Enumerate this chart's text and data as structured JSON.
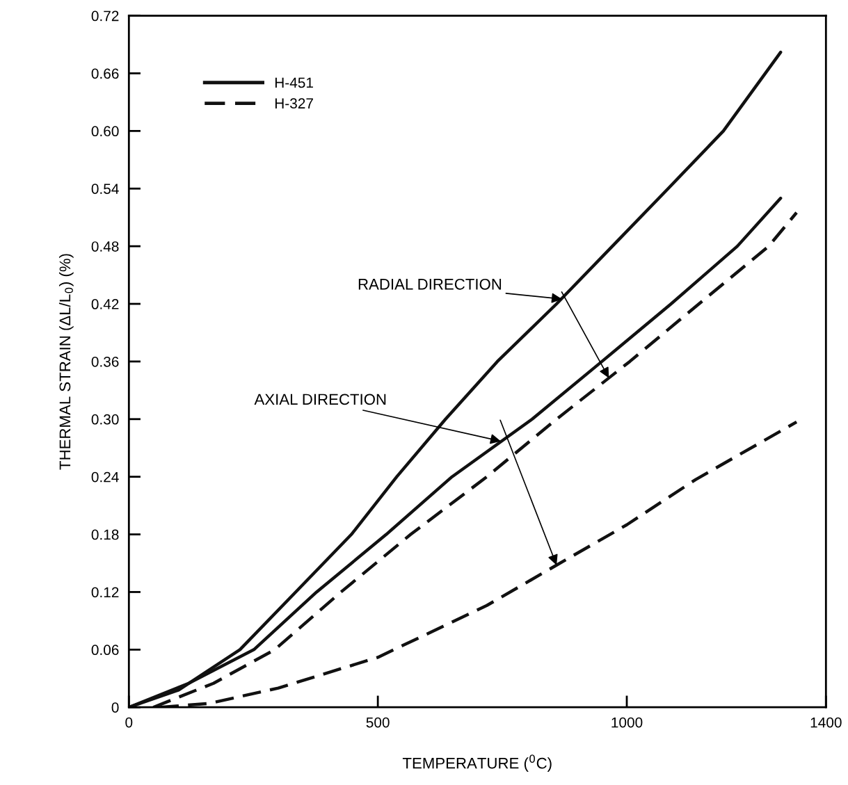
{
  "chart_data": {
    "type": "line",
    "xlabel": "TEMPERATURE ($^{0}$C)",
    "ylabel": "THERMAL STRAIN (ΔL/L$_{0}$) (%)",
    "xlim": [
      0,
      1400
    ],
    "ylim": [
      0,
      0.72
    ],
    "xticks": [
      0,
      500,
      1000,
      1400
    ],
    "yticks": [
      0,
      0.06,
      0.12,
      0.18,
      0.24,
      {
        "value": 0.3,
        "label": "0.30"
      },
      0.36,
      0.42,
      0.48,
      0.54,
      {
        "value": 0.6,
        "label": "0.60"
      },
      0.66,
      0.72
    ],
    "grid": false,
    "legend": "top left",
    "marker": "none",
    "series": [
      {
        "name": "H-451",
        "color": "#111111",
        "line_style": "solid",
        "x": [
          0,
          100,
          223,
          335,
          447,
          538,
          636,
          740,
          859,
          971,
          1083,
          1194,
          1309
        ],
        "values": [
          0,
          0.018,
          0.06,
          0.12,
          0.18,
          0.24,
          0.3,
          0.36,
          0.42,
          0.48,
          0.54,
          0.6,
          0.682
        ]
      },
      {
        "color": "#111111",
        "line_style": "solid",
        "x": [
          0,
          120,
          251,
          377,
          517,
          649,
          810,
          950,
          1089,
          1222,
          1309
        ],
        "values": [
          0,
          0.025,
          0.06,
          0.12,
          0.18,
          0.24,
          0.3,
          0.36,
          0.42,
          0.48,
          0.53
        ]
      },
      {
        "name": "H-327",
        "color": "#111111",
        "line_style": "dashed",
        "x": [
          49,
          170,
          293,
          426,
          566,
          719,
          859,
          1006,
          1145,
          1285,
          1341
        ],
        "values": [
          0,
          0.025,
          0.06,
          0.12,
          0.18,
          0.24,
          0.3,
          0.36,
          0.42,
          0.48,
          0.515
        ]
      },
      {
        "color": "#111111",
        "line_style": "dashed",
        "x": [
          63,
          161,
          300,
          500,
          719,
          859,
          1000,
          1138,
          1341
        ],
        "values": [
          0,
          0.004,
          0.02,
          0.052,
          0.106,
          0.148,
          0.19,
          0.237,
          0.297
        ]
      }
    ],
    "annotations": [
      {
        "text": "RADIAL DIRECTION",
        "x": 870,
        "y": 0.425
      },
      {
        "text": "AXIAL DIRECTION",
        "x": 747,
        "y": 0.277
      }
    ]
  }
}
